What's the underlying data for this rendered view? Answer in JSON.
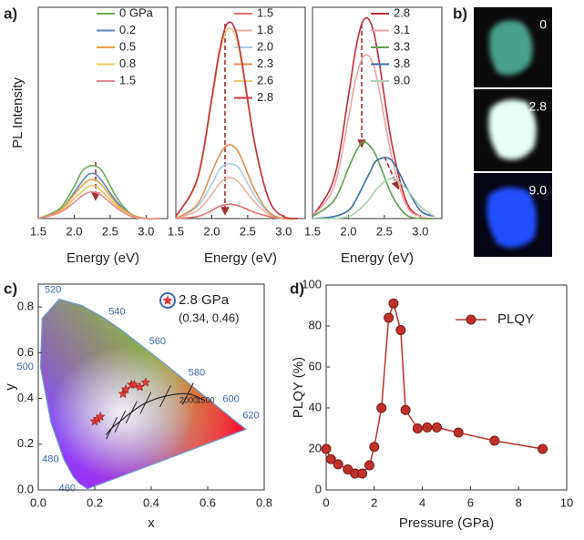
{
  "panel_labels": [
    "a)",
    "b)",
    "c)",
    "d)"
  ],
  "photos": {
    "labels": [
      "0",
      "2.8",
      "9.0"
    ]
  },
  "chart_data": [
    {
      "type": "line",
      "xlabel": "Energy (eV)",
      "ylabel": "PL Intensity",
      "legend": true,
      "xlim": [
        1.5,
        3.3
      ],
      "xticks": [
        1.5,
        {
          "value": 2.0,
          "label": "2.0"
        },
        2.5,
        {
          "value": 3.0,
          "label": "3.0"
        }
      ],
      "ylim": [
        0,
        1.05
      ],
      "x": [
        1.5,
        1.8,
        2.0,
        2.1,
        2.2,
        2.3,
        2.4,
        2.6,
        2.8,
        3.0,
        3.2
      ],
      "series": [
        {
          "name": "0 GPa",
          "color": "#6aaa5a",
          "values": [
            0,
            0.05,
            0.16,
            0.23,
            0.26,
            0.26,
            0.23,
            0.1,
            0.02,
            0,
            0
          ]
        },
        {
          "name": "0.2",
          "color": "#5b86b8",
          "values": [
            0,
            0.04,
            0.13,
            0.18,
            0.22,
            0.22,
            0.18,
            0.08,
            0.02,
            0,
            0
          ]
        },
        {
          "name": "0.5",
          "color": "#e8a040",
          "values": [
            0,
            0.04,
            0.12,
            0.16,
            0.19,
            0.19,
            0.16,
            0.07,
            0.02,
            0,
            0
          ]
        },
        {
          "name": "0.8",
          "color": "#e8c860",
          "values": [
            0,
            0.03,
            0.1,
            0.13,
            0.16,
            0.16,
            0.13,
            0.06,
            0.01,
            0,
            0
          ]
        },
        {
          "name": "1.5",
          "color": "#e88a90",
          "values": [
            0,
            0.03,
            0.08,
            0.11,
            0.13,
            0.13,
            0.11,
            0.05,
            0.01,
            0,
            0
          ]
        }
      ]
    },
    {
      "type": "line",
      "xlabel": "Energy (eV)",
      "legend": true,
      "xlim": [
        1.5,
        3.3
      ],
      "xticks": [
        1.5,
        {
          "value": 2.0,
          "label": "2.0"
        },
        2.5,
        {
          "value": 3.0,
          "label": "3.0"
        }
      ],
      "ylim": [
        0,
        1.05
      ],
      "x": [
        1.5,
        1.8,
        2.0,
        2.1,
        2.2,
        2.3,
        2.4,
        2.6,
        2.8,
        3.0,
        3.2
      ],
      "series": [
        {
          "name": "1.5",
          "color": "#e07070",
          "values": [
            0,
            0.01,
            0.04,
            0.06,
            0.07,
            0.07,
            0.06,
            0.03,
            0.01,
            0,
            0
          ]
        },
        {
          "name": "1.8",
          "color": "#f0b0a0",
          "values": [
            0,
            0.04,
            0.12,
            0.17,
            0.2,
            0.2,
            0.17,
            0.08,
            0.02,
            0,
            0
          ]
        },
        {
          "name": "2.0",
          "color": "#a8cce8",
          "values": [
            0,
            0.06,
            0.17,
            0.24,
            0.27,
            0.27,
            0.24,
            0.11,
            0.03,
            0,
            0
          ]
        },
        {
          "name": "2.3",
          "color": "#e09050",
          "values": [
            0,
            0.07,
            0.23,
            0.31,
            0.36,
            0.36,
            0.31,
            0.14,
            0.03,
            0,
            0
          ]
        },
        {
          "name": "2.6",
          "color": "#e8c870",
          "values": [
            0.01,
            0.19,
            0.58,
            0.8,
            0.93,
            0.93,
            0.8,
            0.36,
            0.09,
            0.01,
            0
          ]
        },
        {
          "name": "2.8",
          "color": "#c83040",
          "values": [
            0.01,
            0.2,
            0.6,
            0.82,
            0.96,
            0.96,
            0.82,
            0.37,
            0.09,
            0.01,
            0
          ]
        }
      ]
    },
    {
      "type": "line",
      "xlabel": "Energy (eV)",
      "legend": true,
      "xlim": [
        1.5,
        3.3
      ],
      "xticks": [
        1.5,
        {
          "value": 2.0,
          "label": "2.0"
        },
        2.5,
        {
          "value": 3.0,
          "label": "3.0"
        }
      ],
      "ylim": [
        0,
        1.05
      ],
      "x": [
        1.5,
        1.8,
        2.0,
        2.1,
        2.2,
        2.3,
        2.4,
        2.6,
        2.8,
        3.0,
        3.2
      ],
      "series": [
        {
          "name": "2.8",
          "color": "#c82838",
          "values": [
            0.01,
            0.2,
            0.61,
            0.84,
            0.98,
            0.98,
            0.84,
            0.38,
            0.09,
            0.01,
            0
          ]
        },
        {
          "name": "3.1",
          "color": "#f0a0a0",
          "values": [
            0.01,
            0.16,
            0.5,
            0.69,
            0.8,
            0.8,
            0.69,
            0.31,
            0.07,
            0.01,
            0
          ]
        },
        {
          "name": "3.3",
          "color": "#60a050",
          "values": [
            0.01,
            0.09,
            0.25,
            0.33,
            0.38,
            0.36,
            0.3,
            0.12,
            0.02,
            0,
            0
          ]
        },
        {
          "name": "3.8",
          "color": "#3a6ea8",
          "values": [
            0,
            0.01,
            0.04,
            0.09,
            0.16,
            0.23,
            0.29,
            0.29,
            0.16,
            0.04,
            0.01
          ]
        },
        {
          "name": "9.0",
          "color": "#a8d0b0",
          "values": [
            0,
            0,
            0.01,
            0.03,
            0.06,
            0.1,
            0.15,
            0.2,
            0.15,
            0.06,
            0.01
          ]
        }
      ]
    },
    {
      "type": "scatter",
      "xlabel": "x",
      "ylabel": "y",
      "xlim": [
        0,
        0.8
      ],
      "xticks": [
        {
          "value": 0,
          "label": "0.0"
        },
        0.2,
        0.4,
        0.6,
        0.8
      ],
      "ylim": [
        0,
        0.9
      ],
      "yticks": [
        {
          "value": 0,
          "label": "0.0"
        },
        0.2,
        0.4,
        0.6,
        0.8
      ],
      "wavelength_labels": [
        "460",
        "480",
        "500",
        "520",
        "540",
        "560",
        "580",
        "600",
        "620"
      ],
      "cct_labels": [
        "2000",
        "1500"
      ],
      "annotations": [
        "2.8 GPa",
        "(0.34, 0.46)"
      ],
      "series": [
        {
          "color": "#e03a3a",
          "x": [
            0.2,
            0.21,
            0.22,
            0.3,
            0.31,
            0.33,
            0.34,
            0.36,
            0.38
          ],
          "values": [
            0.3,
            0.31,
            0.32,
            0.42,
            0.44,
            0.46,
            0.46,
            0.45,
            0.47
          ]
        }
      ]
    },
    {
      "type": "line",
      "xlabel": "Pressure (GPa)",
      "ylabel": "PLQY (%)",
      "legend": true,
      "xlim": [
        0,
        10
      ],
      "xticks": [
        0,
        2,
        4,
        6,
        8,
        10
      ],
      "ylim": [
        0,
        100
      ],
      "yticks": [
        0,
        20,
        40,
        60,
        80,
        100
      ],
      "x": [
        0,
        0.2,
        0.5,
        0.9,
        1.2,
        1.5,
        1.8,
        2.0,
        2.3,
        2.6,
        2.8,
        3.1,
        3.3,
        3.8,
        4.2,
        4.6,
        5.5,
        7.0,
        9.0
      ],
      "series": [
        {
          "name": "PLQY",
          "color": "#c0302a",
          "markers": true,
          "values": [
            20,
            15,
            12.5,
            10,
            8,
            8,
            12,
            21,
            40,
            84,
            91,
            78,
            39,
            30,
            30.5,
            30.5,
            28,
            24,
            20
          ]
        }
      ]
    }
  ]
}
